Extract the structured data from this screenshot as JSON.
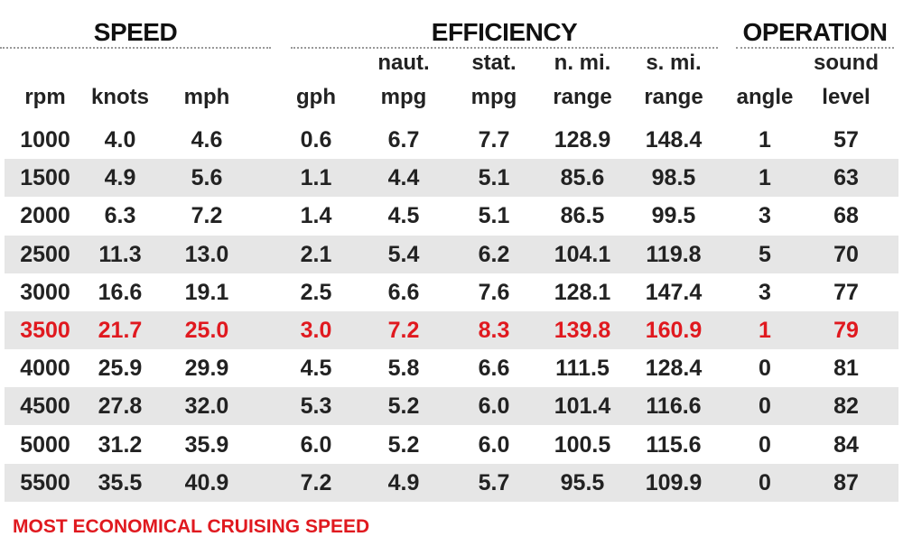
{
  "groups": [
    "SPEED",
    "EFFICIENCY",
    "OPERATION"
  ],
  "table": {
    "headers": [
      [
        "rpm"
      ],
      [
        "knots"
      ],
      [
        "mph"
      ],
      [
        "gph"
      ],
      [
        "naut.",
        "mpg"
      ],
      [
        "stat.",
        "mpg"
      ],
      [
        "n. mi.",
        "range"
      ],
      [
        "s. mi.",
        "range"
      ],
      [
        "angle"
      ],
      [
        "sound",
        "level"
      ]
    ],
    "rows": [
      [
        "1000",
        "4.0",
        "4.6",
        "0.6",
        "6.7",
        "7.7",
        "128.9",
        "148.4",
        "1",
        "57"
      ],
      [
        "1500",
        "4.9",
        "5.6",
        "1.1",
        "4.4",
        "5.1",
        "85.6",
        "98.5",
        "1",
        "63"
      ],
      [
        "2000",
        "6.3",
        "7.2",
        "1.4",
        "4.5",
        "5.1",
        "86.5",
        "99.5",
        "3",
        "68"
      ],
      [
        "2500",
        "11.3",
        "13.0",
        "2.1",
        "5.4",
        "6.2",
        "104.1",
        "119.8",
        "5",
        "70"
      ],
      [
        "3000",
        "16.6",
        "19.1",
        "2.5",
        "6.6",
        "7.6",
        "128.1",
        "147.4",
        "3",
        "77"
      ],
      [
        "3500",
        "21.7",
        "25.0",
        "3.0",
        "7.2",
        "8.3",
        "139.8",
        "160.9",
        "1",
        "79"
      ],
      [
        "4000",
        "25.9",
        "29.9",
        "4.5",
        "5.8",
        "6.6",
        "111.5",
        "128.4",
        "0",
        "81"
      ],
      [
        "4500",
        "27.8",
        "32.0",
        "5.3",
        "5.2",
        "6.0",
        "101.4",
        "116.6",
        "0",
        "82"
      ],
      [
        "5000",
        "31.2",
        "35.9",
        "6.0",
        "5.2",
        "6.0",
        "100.5",
        "115.6",
        "0",
        "84"
      ],
      [
        "5500",
        "35.5",
        "40.9",
        "7.2",
        "4.9",
        "5.7",
        "95.5",
        "109.9",
        "0",
        "87"
      ]
    ],
    "highlight_row": 5
  },
  "footnote": "MOST ECONOMICAL CRUISING SPEED"
}
